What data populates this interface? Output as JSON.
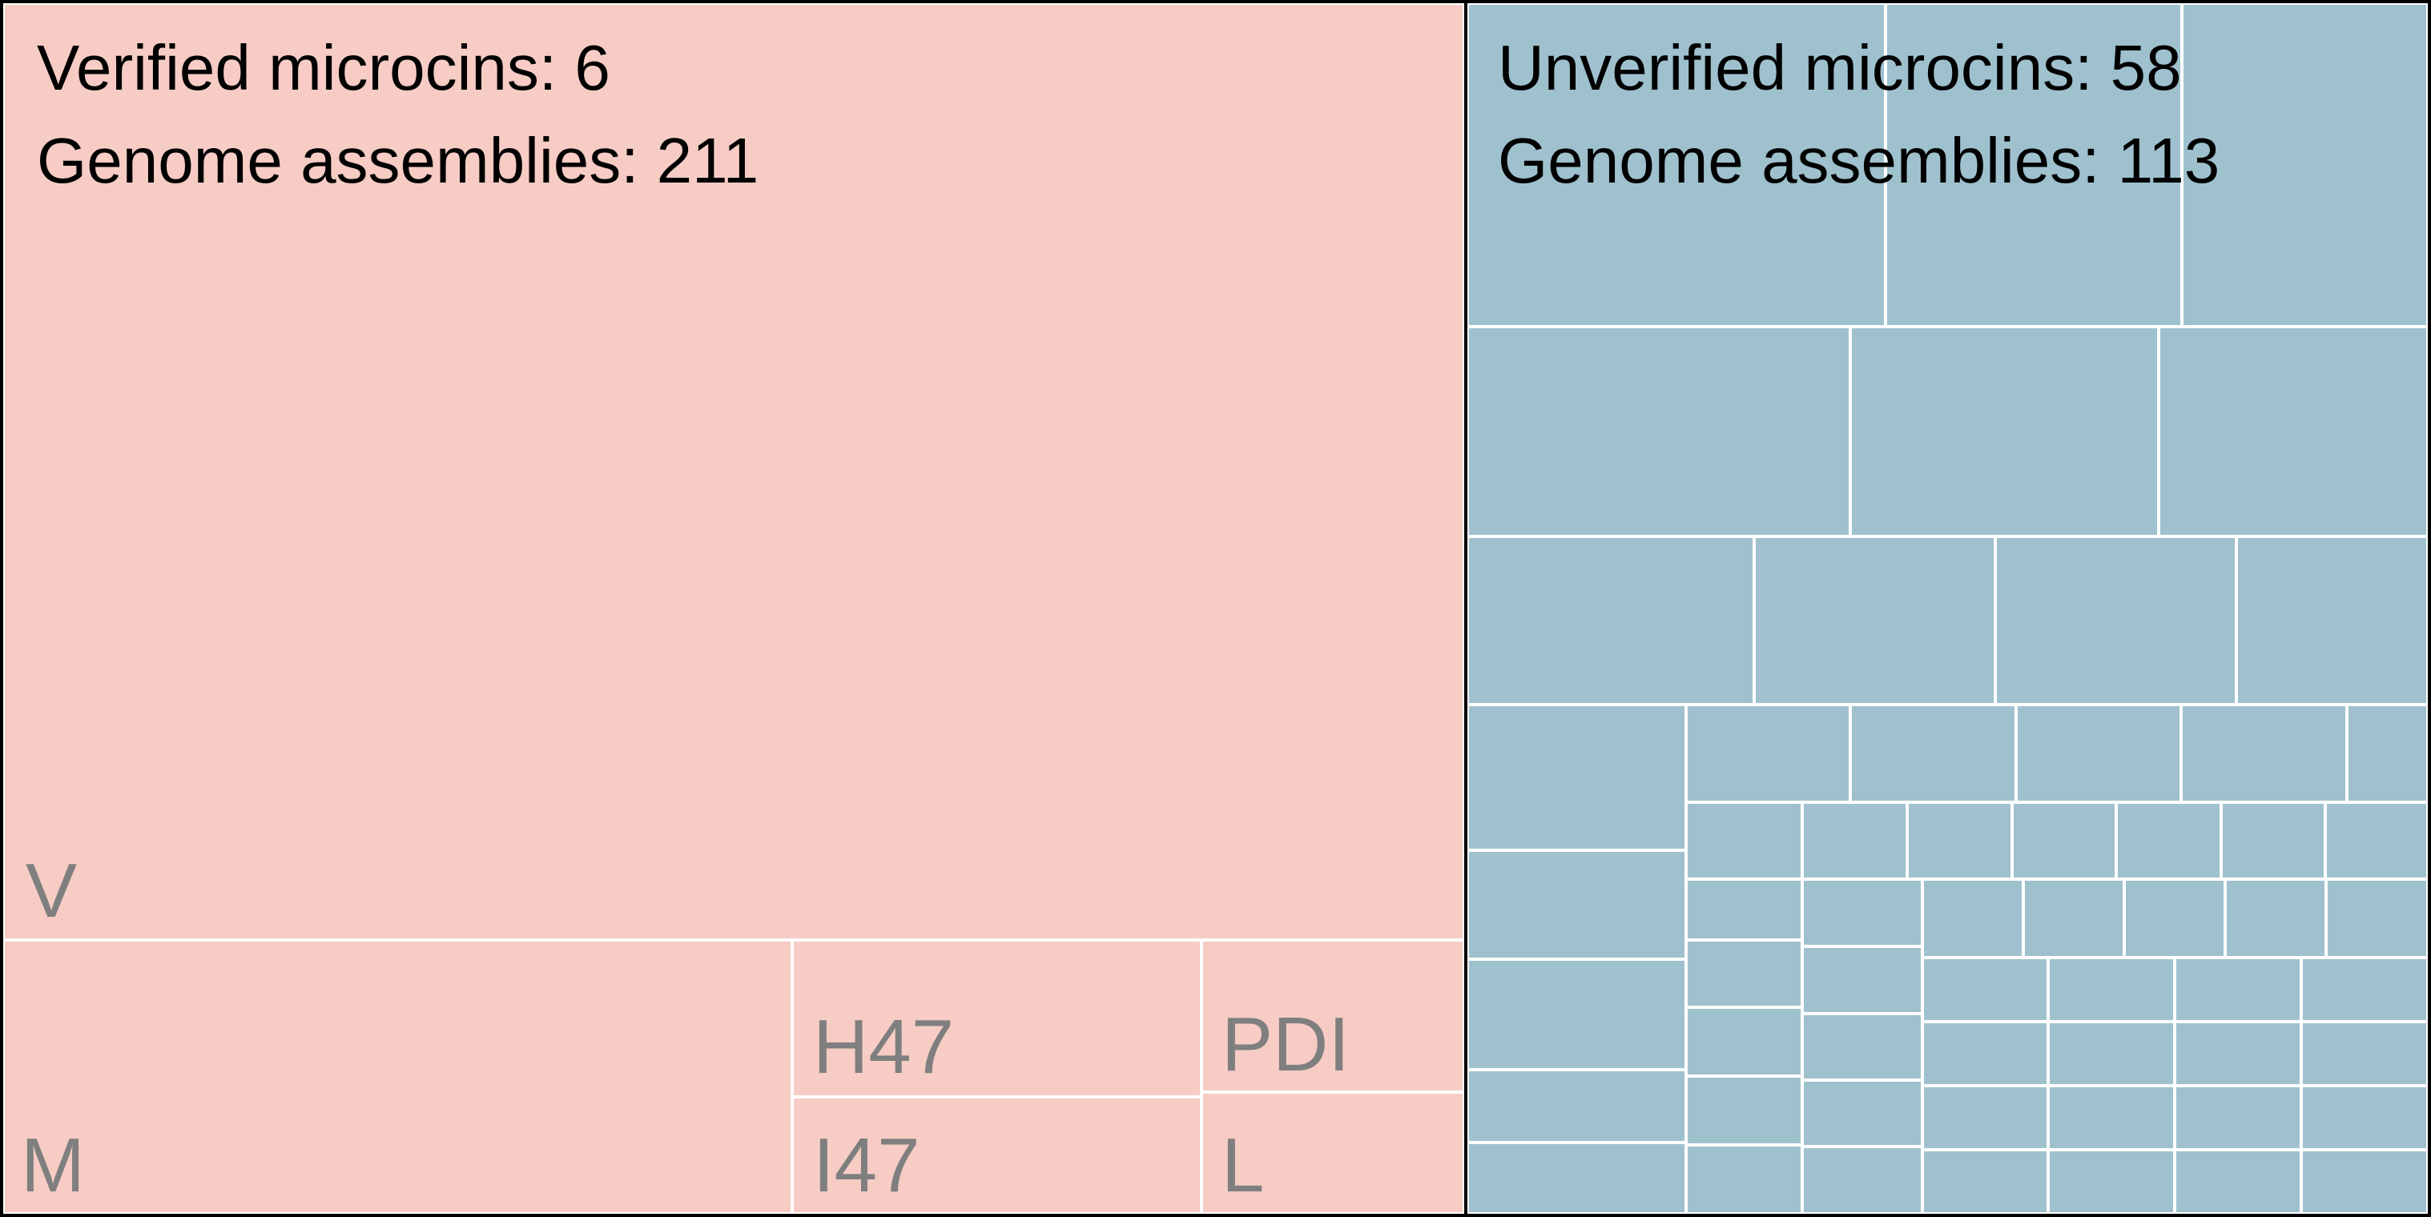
{
  "chart_data": {
    "type": "treemap",
    "groups": [
      {
        "id": "verified",
        "header": [
          "Verified microcins: 6",
          "Genome assemblies: 211"
        ],
        "color": "#f6ccc5",
        "cells": [
          {
            "label": "V"
          },
          {
            "label": "M"
          },
          {
            "label": "H47"
          },
          {
            "label": "I47"
          },
          {
            "label": "PDI"
          },
          {
            "label": "L"
          }
        ]
      },
      {
        "id": "unverified",
        "header": [
          "Unverified microcins: 58",
          "Genome assemblies: 113"
        ],
        "color": "#9fc1ce",
        "cell_count": 58
      }
    ],
    "cell_border_color": "#ffffff",
    "frame_color": "#000000"
  }
}
